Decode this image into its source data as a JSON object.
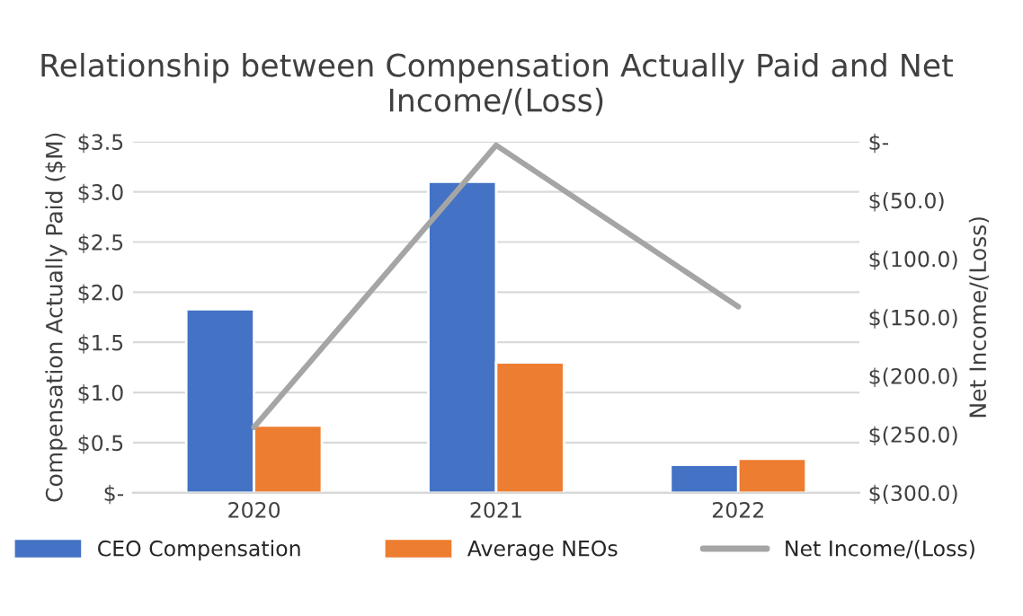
{
  "chart_data": {
    "type": "bar",
    "title": "Relationship between Compensation Actually Paid and Net Income/(Loss)",
    "ylabel": "Compensation Actually Paid ($M)",
    "y2label": "Net Income/(Loss)",
    "categories": [
      "2020",
      "2021",
      "2022"
    ],
    "series": [
      {
        "name": "CEO Compensation",
        "color": "#4472c4",
        "values": [
          1.83,
          3.1,
          0.28
        ]
      },
      {
        "name": "Average NEOs",
        "color": "#ed7d31",
        "values": [
          0.67,
          1.3,
          0.34
        ]
      },
      {
        "name": "Net Income/(Loss)",
        "type": "line",
        "axis": "y2",
        "color": "#a5a5a5",
        "values": [
          -244,
          -3,
          -141
        ]
      }
    ],
    "ylim": [
      0,
      3.5
    ],
    "yticks": [
      {
        "value": 0,
        "label": "$-"
      },
      {
        "value": 0.5,
        "label": "$0.5"
      },
      {
        "value": 1.0,
        "label": "$1.0"
      },
      {
        "value": 1.5,
        "label": "$1.5"
      },
      {
        "value": 2.0,
        "label": "$2.0"
      },
      {
        "value": 2.5,
        "label": "$2.5"
      },
      {
        "value": 3.0,
        "label": "$3.0"
      },
      {
        "value": 3.5,
        "label": "$3.5"
      }
    ],
    "y2lim": [
      -300,
      0
    ],
    "y2ticks": [
      {
        "value": -300,
        "label": "$(300.0)"
      },
      {
        "value": -250,
        "label": "$(250.0)"
      },
      {
        "value": -200,
        "label": "$(200.0)"
      },
      {
        "value": -150,
        "label": "$(150.0)"
      },
      {
        "value": -100,
        "label": "$(100.0)"
      },
      {
        "value": -50,
        "label": "$(50.0)"
      },
      {
        "value": 0,
        "label": "$-"
      }
    ],
    "grid": "y",
    "legend": "bottom",
    "marker": "none",
    "line_style": "solid"
  }
}
